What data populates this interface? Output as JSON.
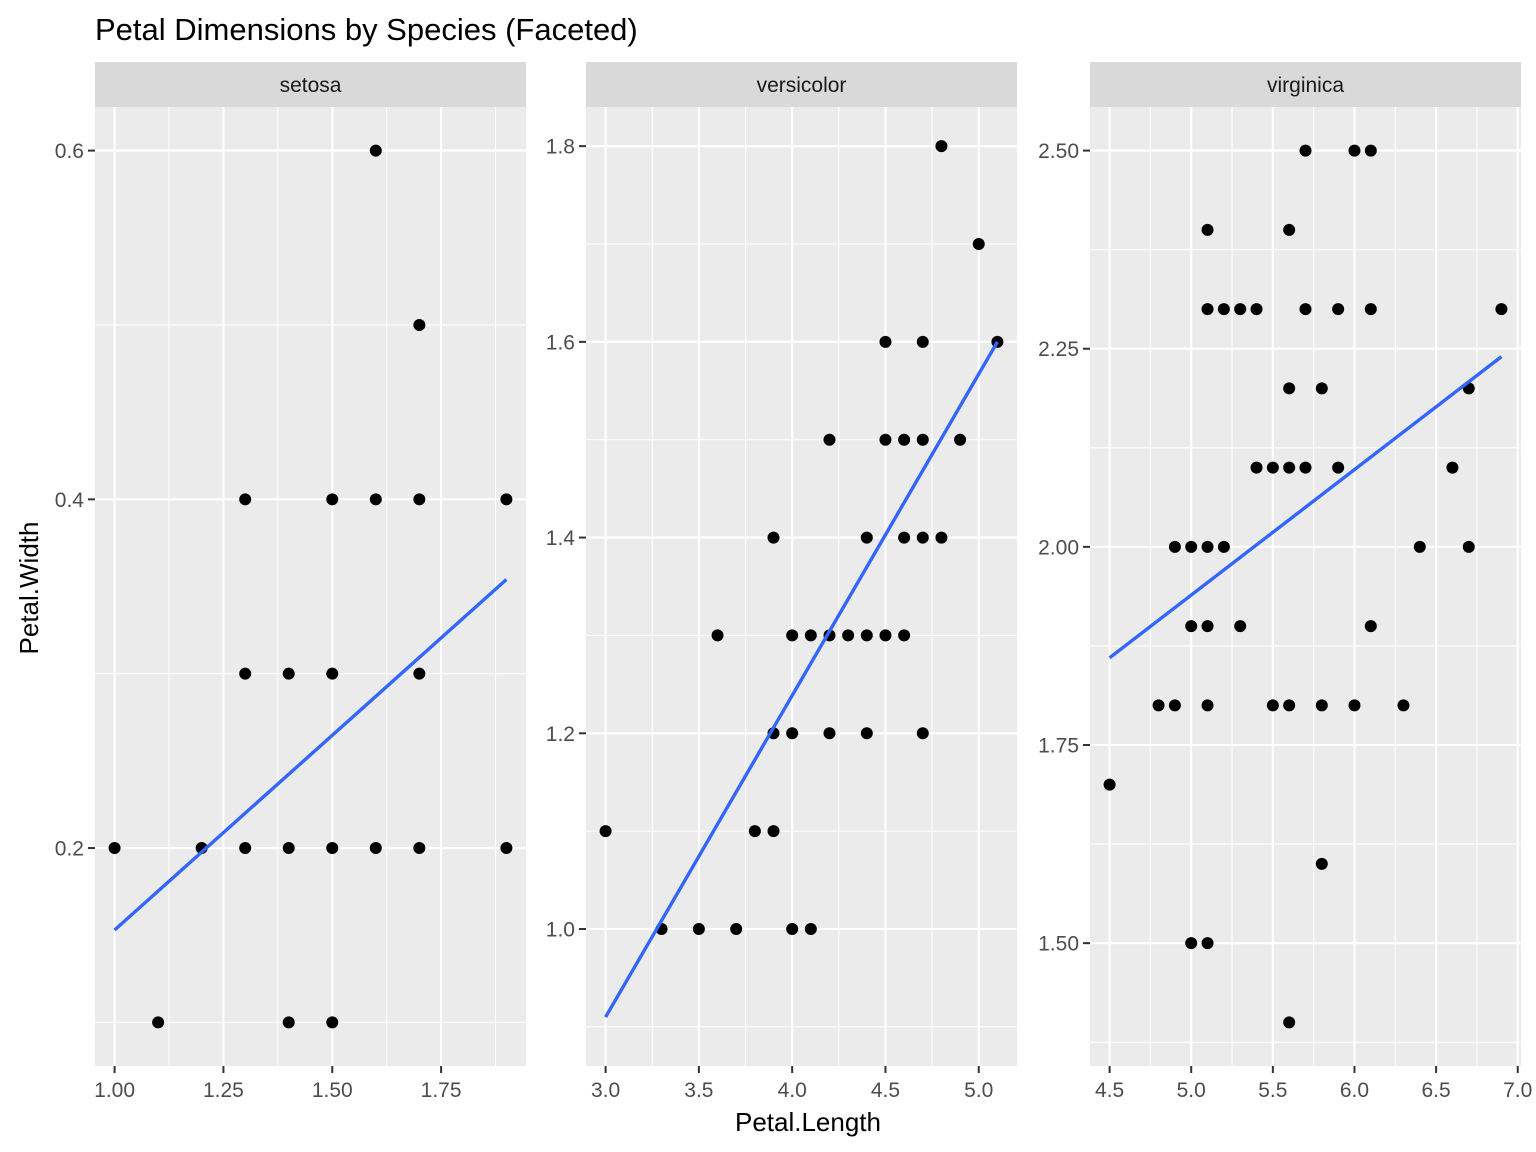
{
  "chart_data": {
    "type": "scatter",
    "title": "Petal Dimensions by Species (Faceted)",
    "xlabel": "Petal.Length",
    "ylabel": "Petal.Width",
    "grid": true,
    "colors": {
      "panel": "#ebebeb",
      "strip": "#d9d9d9",
      "points": "#000000",
      "fit_line": "#3366ff"
    },
    "facets": [
      {
        "name": "setosa",
        "xlim": [
          0.955,
          1.945
        ],
        "ylim": [
          0.075,
          0.625
        ],
        "x_ticks": [
          1.0,
          1.25,
          1.5,
          1.75
        ],
        "x_tick_labels": [
          "1.00",
          "1.25",
          "1.50",
          "1.75"
        ],
        "y_ticks": [
          0.2,
          0.4,
          0.6
        ],
        "y_tick_labels": [
          "0.2",
          "0.4",
          "0.6"
        ],
        "fit": {
          "x": [
            1.0,
            1.9
          ],
          "y": [
            0.153,
            0.354
          ]
        },
        "points": [
          [
            1.0,
            0.2
          ],
          [
            1.1,
            0.1
          ],
          [
            1.2,
            0.2
          ],
          [
            1.3,
            0.4
          ],
          [
            1.3,
            0.3
          ],
          [
            1.3,
            0.2
          ],
          [
            1.4,
            0.3
          ],
          [
            1.4,
            0.2
          ],
          [
            1.4,
            0.1
          ],
          [
            1.5,
            0.4
          ],
          [
            1.5,
            0.3
          ],
          [
            1.5,
            0.2
          ],
          [
            1.5,
            0.1
          ],
          [
            1.6,
            0.6
          ],
          [
            1.6,
            0.4
          ],
          [
            1.6,
            0.2
          ],
          [
            1.7,
            0.5
          ],
          [
            1.7,
            0.4
          ],
          [
            1.7,
            0.3
          ],
          [
            1.7,
            0.2
          ],
          [
            1.9,
            0.4
          ],
          [
            1.9,
            0.2
          ]
        ]
      },
      {
        "name": "versicolor",
        "xlim": [
          2.895,
          5.205
        ],
        "ylim": [
          0.86,
          1.84
        ],
        "x_ticks": [
          3.0,
          3.5,
          4.0,
          4.5,
          5.0
        ],
        "x_tick_labels": [
          "3.0",
          "3.5",
          "4.0",
          "4.5",
          "5.0"
        ],
        "y_ticks": [
          1.0,
          1.2,
          1.4,
          1.6,
          1.8
        ],
        "y_tick_labels": [
          "1.0",
          "1.2",
          "1.4",
          "1.6",
          "1.8"
        ],
        "fit": {
          "x": [
            3.0,
            5.1
          ],
          "y": [
            0.91,
            1.6
          ]
        },
        "points": [
          [
            3.0,
            1.1
          ],
          [
            3.3,
            1.0
          ],
          [
            3.5,
            1.0
          ],
          [
            3.6,
            1.3
          ],
          [
            3.7,
            1.0
          ],
          [
            3.8,
            1.1
          ],
          [
            3.9,
            1.4
          ],
          [
            3.9,
            1.2
          ],
          [
            3.9,
            1.1
          ],
          [
            4.0,
            1.3
          ],
          [
            4.0,
            1.2
          ],
          [
            4.0,
            1.0
          ],
          [
            4.1,
            1.3
          ],
          [
            4.1,
            1.0
          ],
          [
            4.2,
            1.5
          ],
          [
            4.2,
            1.3
          ],
          [
            4.2,
            1.2
          ],
          [
            4.3,
            1.3
          ],
          [
            4.4,
            1.4
          ],
          [
            4.4,
            1.3
          ],
          [
            4.4,
            1.2
          ],
          [
            4.5,
            1.6
          ],
          [
            4.5,
            1.5
          ],
          [
            4.5,
            1.3
          ],
          [
            4.6,
            1.5
          ],
          [
            4.6,
            1.4
          ],
          [
            4.6,
            1.3
          ],
          [
            4.7,
            1.6
          ],
          [
            4.7,
            1.5
          ],
          [
            4.7,
            1.4
          ],
          [
            4.7,
            1.2
          ],
          [
            4.8,
            1.8
          ],
          [
            4.8,
            1.4
          ],
          [
            4.9,
            1.5
          ],
          [
            5.0,
            1.7
          ],
          [
            5.1,
            1.6
          ]
        ]
      },
      {
        "name": "virginica",
        "xlim": [
          4.38,
          7.02
        ],
        "ylim": [
          1.345,
          2.555
        ],
        "x_ticks": [
          4.5,
          5.0,
          5.5,
          6.0,
          6.5,
          7.0
        ],
        "x_tick_labels": [
          "4.5",
          "5.0",
          "5.5",
          "6.0",
          "6.5",
          "7.0"
        ],
        "y_ticks": [
          1.5,
          1.75,
          2.0,
          2.25,
          2.5
        ],
        "y_tick_labels": [
          "1.50",
          "1.75",
          "2.00",
          "2.25",
          "2.50"
        ],
        "fit": {
          "x": [
            4.5,
            6.9
          ],
          "y": [
            1.86,
            2.24
          ]
        },
        "points": [
          [
            4.5,
            1.7
          ],
          [
            4.8,
            1.8
          ],
          [
            4.9,
            2.0
          ],
          [
            4.9,
            1.8
          ],
          [
            5.0,
            2.0
          ],
          [
            5.0,
            1.9
          ],
          [
            5.0,
            1.5
          ],
          [
            5.1,
            2.4
          ],
          [
            5.1,
            2.3
          ],
          [
            5.1,
            2.0
          ],
          [
            5.1,
            1.9
          ],
          [
            5.1,
            1.8
          ],
          [
            5.1,
            1.5
          ],
          [
            5.2,
            2.3
          ],
          [
            5.2,
            2.0
          ],
          [
            5.3,
            2.3
          ],
          [
            5.3,
            1.9
          ],
          [
            5.4,
            2.3
          ],
          [
            5.4,
            2.1
          ],
          [
            5.5,
            2.1
          ],
          [
            5.5,
            1.8
          ],
          [
            5.6,
            2.4
          ],
          [
            5.6,
            2.2
          ],
          [
            5.6,
            2.1
          ],
          [
            5.6,
            1.8
          ],
          [
            5.6,
            1.4
          ],
          [
            5.7,
            2.5
          ],
          [
            5.7,
            2.3
          ],
          [
            5.7,
            2.1
          ],
          [
            5.8,
            2.2
          ],
          [
            5.8,
            1.8
          ],
          [
            5.8,
            1.6
          ],
          [
            5.9,
            2.3
          ],
          [
            5.9,
            2.1
          ],
          [
            6.0,
            2.5
          ],
          [
            6.0,
            1.8
          ],
          [
            6.1,
            2.5
          ],
          [
            6.1,
            2.3
          ],
          [
            6.1,
            1.9
          ],
          [
            6.3,
            1.8
          ],
          [
            6.4,
            2.0
          ],
          [
            6.6,
            2.1
          ],
          [
            6.7,
            2.2
          ],
          [
            6.7,
            2.0
          ],
          [
            6.9,
            2.3
          ]
        ]
      }
    ]
  }
}
